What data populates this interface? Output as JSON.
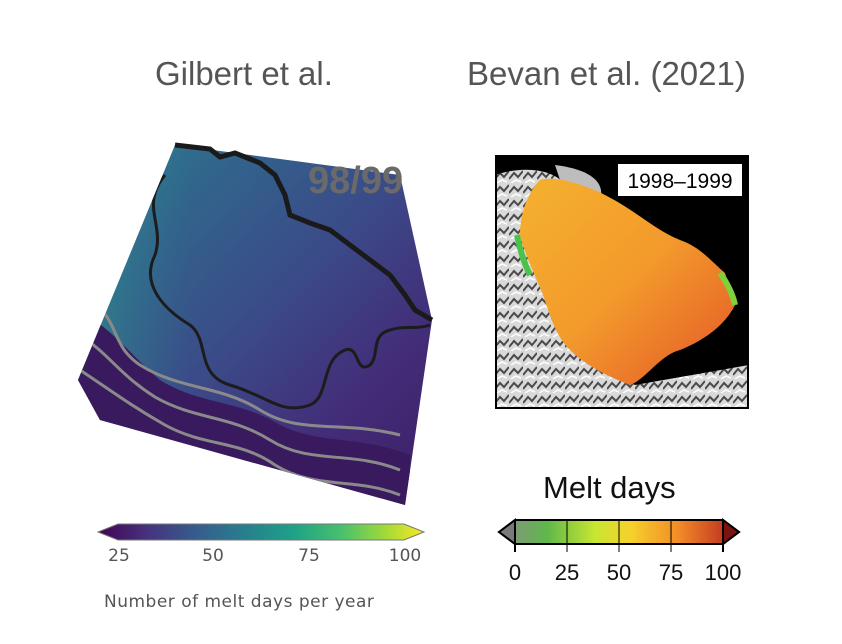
{
  "panels": {
    "left": {
      "title": "Gilbert et al.",
      "year_label": "98/99",
      "colorbar": {
        "title": "Number of melt days per year",
        "ticks": [
          "25",
          "50",
          "75",
          "100"
        ],
        "colormap": "viridis"
      }
    },
    "right": {
      "title": "Bevan et al. (2021)",
      "year_label": "1998–1999",
      "colorbar": {
        "title": "Melt days",
        "ticks": [
          "0",
          "25",
          "50",
          "75",
          "100"
        ],
        "colormap": "grey-green-yellow-orange-red"
      }
    }
  }
}
